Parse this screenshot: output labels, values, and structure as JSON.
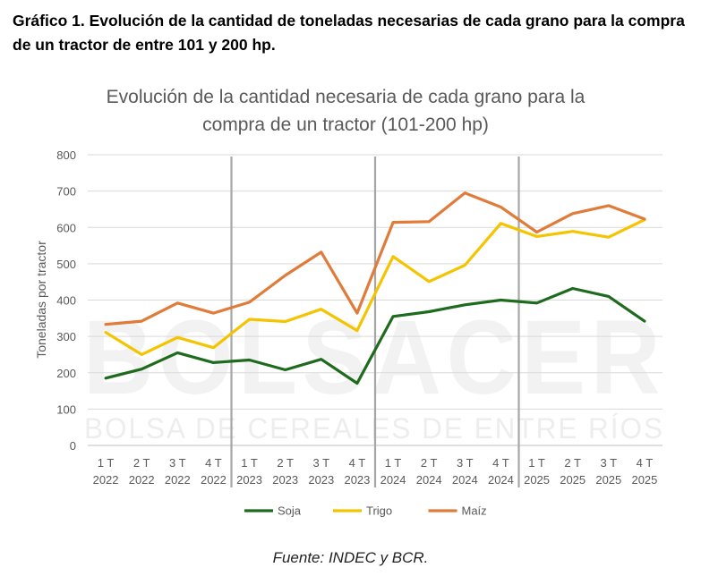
{
  "caption": "Gráfico 1. Evolución de la cantidad de toneladas necesarias de cada grano para la compra de un tractor de entre 101 y 200 hp.",
  "source": "Fuente: INDEC y BCR.",
  "watermark": {
    "main": "BOLSACER",
    "sub": "BOLSA DE CEREALES DE ENTRE RÍOS"
  },
  "chart_data": {
    "type": "line",
    "title": "Evolución de la cantidad necesaria de cada grano para la compra de un tractor (101-200 hp)",
    "title_lines": [
      "Evolución de la cantidad necesaria de cada grano para la",
      "compra de un tractor (101-200 hp)"
    ],
    "ylabel": "Toneladas por tractor",
    "xlabel": "",
    "ylim": [
      0,
      800
    ],
    "yticks": [
      0,
      100,
      200,
      300,
      400,
      500,
      600,
      700,
      800
    ],
    "categories": [
      [
        "1 T",
        "2022"
      ],
      [
        "2 T",
        "2022"
      ],
      [
        "3 T",
        "2022"
      ],
      [
        "4 T",
        "2022"
      ],
      [
        "1 T",
        "2023"
      ],
      [
        "2 T",
        "2023"
      ],
      [
        "3 T",
        "2023"
      ],
      [
        "4 T",
        "2023"
      ],
      [
        "1 T",
        "2024"
      ],
      [
        "2 T",
        "2024"
      ],
      [
        "3 T",
        "2024"
      ],
      [
        "4 T",
        "2024"
      ],
      [
        "1 T",
        "2025"
      ],
      [
        "2 T",
        "2025"
      ],
      [
        "3 T",
        "2025"
      ],
      [
        "4 T",
        "2025"
      ]
    ],
    "year_separators_after_index": [
      3,
      7,
      11
    ],
    "series": [
      {
        "name": "Soja",
        "color": "#1e6b1e",
        "values": [
          185,
          210,
          255,
          228,
          235,
          208,
          237,
          171,
          355,
          368,
          387,
          400,
          392,
          432,
          410,
          342
        ]
      },
      {
        "name": "Trigo",
        "color": "#f5c400",
        "values": [
          311,
          250,
          297,
          269,
          347,
          341,
          375,
          316,
          520,
          451,
          496,
          611,
          575,
          589,
          573,
          621
        ]
      },
      {
        "name": "Maíz",
        "color": "#e07b39",
        "values": [
          333,
          342,
          392,
          364,
          394,
          468,
          532,
          364,
          614,
          616,
          695,
          656,
          587,
          638,
          660,
          623
        ]
      }
    ],
    "legend_position": "bottom",
    "grid": true
  }
}
